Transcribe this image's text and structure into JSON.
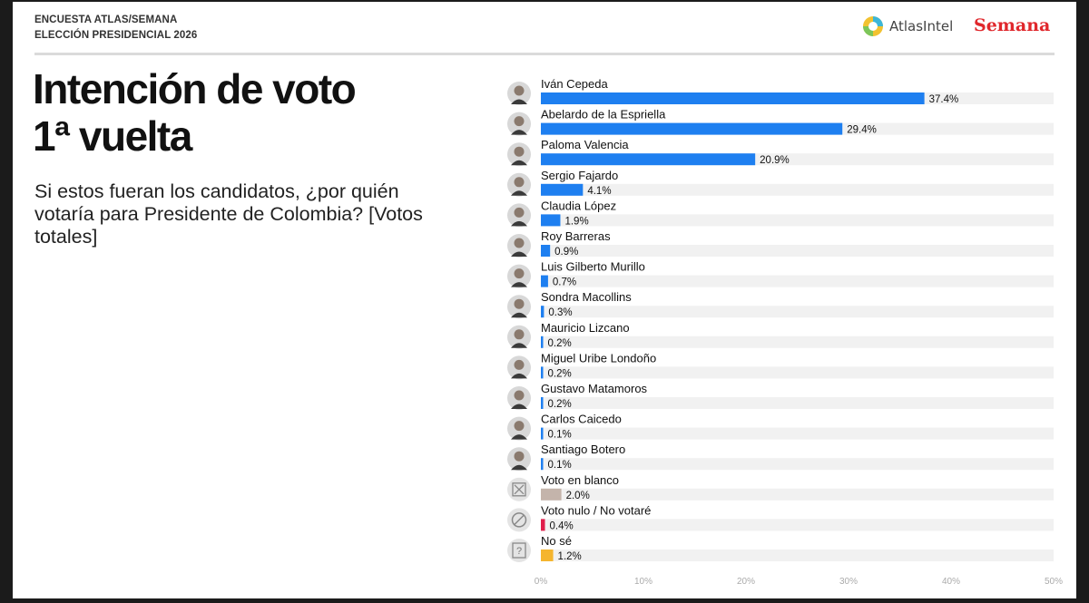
{
  "header": {
    "line1": "ENCUESTA ATLAS/SEMANA",
    "line2": "ELECCIÓN PRESIDENCIAL 2026",
    "atlas_logo_text": "AtlasIntel",
    "semana_logo_text": "Semana"
  },
  "title_line1": "Intención de voto",
  "title_line2": "1ª vuelta",
  "subtitle": "Si estos fueran los candidatos, ¿por quién votaría para Presidente de Colombia? [Votos totales]",
  "colors": {
    "candidate": "#1e7ff0",
    "blank": "#c4b4ab",
    "null": "#e01e4b",
    "dontknow": "#f5b52e",
    "track": "#f1f1f1"
  },
  "chart_data": {
    "type": "bar",
    "orientation": "horizontal",
    "xlim": [
      0,
      50
    ],
    "ticks": [
      "0%",
      "10%",
      "20%",
      "30%",
      "40%",
      "50%"
    ],
    "categories": [
      "Iván Cepeda",
      "Abelardo de la Espriella",
      "Paloma Valencia",
      "Sergio Fajardo",
      "Claudia López",
      "Roy Barreras",
      "Luis Gilberto Murillo",
      "Sondra Macollins",
      "Mauricio Lizcano",
      "Miguel Uribe Londoño",
      "Gustavo Matamoros",
      "Carlos Caicedo",
      "Santiago Botero",
      "Voto en blanco",
      "Voto nulo / No votaré",
      "No sé"
    ],
    "values": [
      37.4,
      29.4,
      20.9,
      4.1,
      1.9,
      0.9,
      0.7,
      0.3,
      0.2,
      0.2,
      0.2,
      0.1,
      0.1,
      2.0,
      0.4,
      1.2
    ],
    "value_labels": [
      "37.4%",
      "29.4%",
      "20.9%",
      "4.1%",
      "1.9%",
      "0.9%",
      "0.7%",
      "0.3%",
      "0.2%",
      "0.2%",
      "0.2%",
      "0.1%",
      "0.1%",
      "2.0%",
      "0.4%",
      "1.2%"
    ],
    "kinds": [
      "candidate",
      "candidate",
      "candidate",
      "candidate",
      "candidate",
      "candidate",
      "candidate",
      "candidate",
      "candidate",
      "candidate",
      "candidate",
      "candidate",
      "candidate",
      "blank",
      "null",
      "dontknow"
    ],
    "icons": [
      "avatar",
      "avatar",
      "avatar",
      "avatar",
      "avatar",
      "avatar",
      "avatar",
      "avatar",
      "avatar",
      "avatar",
      "avatar",
      "avatar",
      "avatar",
      "blank-vote-icon",
      "null-vote-icon",
      "dont-know-icon"
    ],
    "grid": false,
    "legend": "none"
  }
}
